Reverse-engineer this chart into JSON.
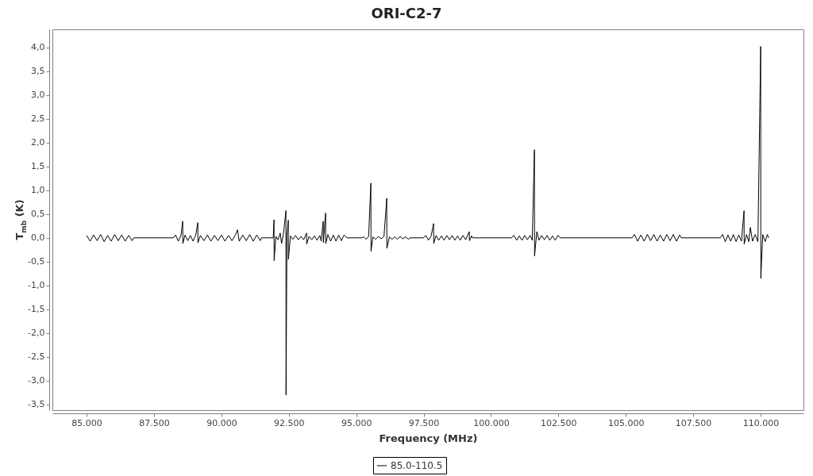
{
  "chart_data": {
    "type": "line",
    "title": "ORI-C2-7",
    "xlabel": "Frequency (MHz)",
    "ylabel": "T$_{mb}$ (K)",
    "xlim": [
      83730,
      111590
    ],
    "ylim": [
      -3.62,
      4.38
    ],
    "xticks": [
      {
        "value": 85000,
        "label": "85.000"
      },
      {
        "value": 87500,
        "label": "87.500"
      },
      {
        "value": 90000,
        "label": "90.000"
      },
      {
        "value": 92500,
        "label": "92.500"
      },
      {
        "value": 95000,
        "label": "95.000"
      },
      {
        "value": 97500,
        "label": "97.500"
      },
      {
        "value": 100000,
        "label": "100.000"
      },
      {
        "value": 102500,
        "label": "102.500"
      },
      {
        "value": 105000,
        "label": "105.000"
      },
      {
        "value": 107500,
        "label": "107.500"
      },
      {
        "value": 110000,
        "label": "110.000"
      }
    ],
    "yticks": [
      {
        "value": -3.5,
        "label": "-3,5"
      },
      {
        "value": -3,
        "label": "-3,0"
      },
      {
        "value": -2.5,
        "label": "-2,5"
      },
      {
        "value": -2,
        "label": "-2,0"
      },
      {
        "value": -1.5,
        "label": "-1,5"
      },
      {
        "value": -1,
        "label": "-1,0"
      },
      {
        "value": -0.5,
        "label": "-0,5"
      },
      {
        "value": 0,
        "label": "0,0"
      },
      {
        "value": 0.5,
        "label": "0,5"
      },
      {
        "value": 1,
        "label": "1,0"
      },
      {
        "value": 1.5,
        "label": "1,5"
      },
      {
        "value": 2,
        "label": "2,0"
      },
      {
        "value": 2.5,
        "label": "2,5"
      },
      {
        "value": 3,
        "label": "3,0"
      },
      {
        "value": 3.5,
        "label": "3,5"
      },
      {
        "value": 4,
        "label": "4,0"
      }
    ],
    "legend": "bottom",
    "line_style": "solid",
    "series": [
      {
        "name": "85.0-110.5",
        "color": "#000000",
        "x": [
          85000,
          85130,
          85260,
          85390,
          85520,
          85650,
          85780,
          85910,
          86040,
          86170,
          86300,
          86430,
          86560,
          86690,
          86750,
          88210,
          88300,
          88400,
          88500,
          88563,
          88570,
          88650,
          88750,
          88850,
          88950,
          89050,
          89123,
          89130,
          89220,
          89350,
          89480,
          89610,
          89740,
          89870,
          90000,
          90130,
          90260,
          90390,
          90520,
          90596,
          90660,
          90790,
          90920,
          91050,
          91180,
          91310,
          91440,
          91480,
          91921,
          91950,
          91955,
          92020,
          92100,
          92180,
          92230,
          92300,
          92392,
          92397,
          92430,
          92480,
          92485,
          92560,
          92650,
          92750,
          92850,
          92950,
          93050,
          93158,
          93163,
          93250,
          93350,
          93450,
          93550,
          93650,
          93700,
          93776,
          93781,
          93865,
          93870,
          93950,
          94050,
          94150,
          94250,
          94350,
          94450,
          94550,
          94660,
          95190,
          95280,
          95370,
          95460,
          95543,
          95548,
          95620,
          95720,
          95820,
          95920,
          96030,
          96132,
          96137,
          96230,
          96330,
          96430,
          96530,
          96630,
          96730,
          96830,
          96940,
          96986,
          97487,
          97580,
          97680,
          97780,
          97870,
          97875,
          97960,
          98060,
          98160,
          98260,
          98360,
          98460,
          98560,
          98660,
          98760,
          98860,
          98960,
          99060,
          99195,
          99200,
          99280,
          99313,
          100756,
          100850,
          100950,
          101050,
          101150,
          101250,
          101350,
          101450,
          101530,
          101610,
          101615,
          101700,
          101780,
          101880,
          101980,
          102080,
          102180,
          102280,
          102380,
          102480,
          102582,
          105232,
          105320,
          105440,
          105560,
          105680,
          105800,
          105920,
          106040,
          106160,
          106280,
          106400,
          106520,
          106640,
          106760,
          106880,
          107000,
          107058,
          108501,
          108590,
          108690,
          108790,
          108890,
          108990,
          109090,
          109190,
          109290,
          109385,
          109390,
          109480,
          109560,
          109620,
          109700,
          109800,
          109900,
          110003,
          110008,
          110080,
          110170,
          110250,
          110298
        ],
        "values": [
          0.05,
          -0.07,
          0.06,
          -0.06,
          0.07,
          -0.08,
          0.05,
          -0.07,
          0.07,
          -0.06,
          0.06,
          -0.07,
          0.05,
          -0.06,
          0,
          0,
          0.06,
          -0.07,
          0.05,
          0.35,
          -0.12,
          0.06,
          -0.06,
          0.05,
          -0.07,
          0.06,
          0.32,
          -0.1,
          0.05,
          -0.06,
          0.06,
          -0.07,
          0.05,
          -0.06,
          0.06,
          -0.07,
          0.05,
          -0.06,
          0.06,
          0.17,
          -0.07,
          0.06,
          -0.06,
          0.07,
          -0.07,
          0.06,
          -0.06,
          0,
          0,
          0.38,
          -0.48,
          0.03,
          -0.04,
          0.1,
          -0.12,
          0.08,
          0.57,
          -3.3,
          0.05,
          0.37,
          -0.45,
          0.04,
          -0.03,
          0.05,
          -0.04,
          0.03,
          -0.04,
          0.1,
          -0.13,
          0.03,
          -0.04,
          0.04,
          -0.05,
          0.05,
          -0.07,
          0.35,
          -0.1,
          0.52,
          -0.12,
          0.07,
          -0.07,
          0.06,
          -0.07,
          0.06,
          -0.06,
          0.06,
          0,
          0,
          0.02,
          -0.03,
          0.03,
          1.15,
          -0.28,
          0.02,
          -0.03,
          0.03,
          -0.02,
          0.03,
          0.83,
          -0.22,
          0.02,
          -0.03,
          0.02,
          -0.03,
          0.03,
          -0.02,
          0.02,
          -0.03,
          0,
          0,
          0.05,
          -0.05,
          0.04,
          0.3,
          -0.12,
          0.05,
          -0.05,
          0.04,
          -0.05,
          0.05,
          -0.04,
          0.05,
          -0.05,
          0.04,
          -0.05,
          0.05,
          -0.04,
          0.13,
          -0.06,
          0.04,
          0,
          0,
          0.05,
          -0.05,
          0.04,
          -0.05,
          0.05,
          -0.04,
          0.05,
          -0.05,
          1.85,
          -0.38,
          0.13,
          -0.05,
          0.05,
          -0.04,
          0.05,
          -0.05,
          0.04,
          -0.05,
          0.05,
          0,
          0,
          0.07,
          -0.07,
          0.06,
          -0.07,
          0.07,
          -0.06,
          0.07,
          -0.07,
          0.06,
          -0.07,
          0.07,
          -0.06,
          0.07,
          -0.07,
          0.06,
          0,
          0,
          0.07,
          -0.08,
          0.06,
          -0.07,
          0.07,
          -0.08,
          0.06,
          -0.07,
          0.57,
          -0.13,
          0.07,
          -0.08,
          0.22,
          -0.07,
          0.07,
          -0.08,
          4.02,
          -0.85,
          0.07,
          -0.08,
          0.07,
          0
        ]
      }
    ]
  }
}
